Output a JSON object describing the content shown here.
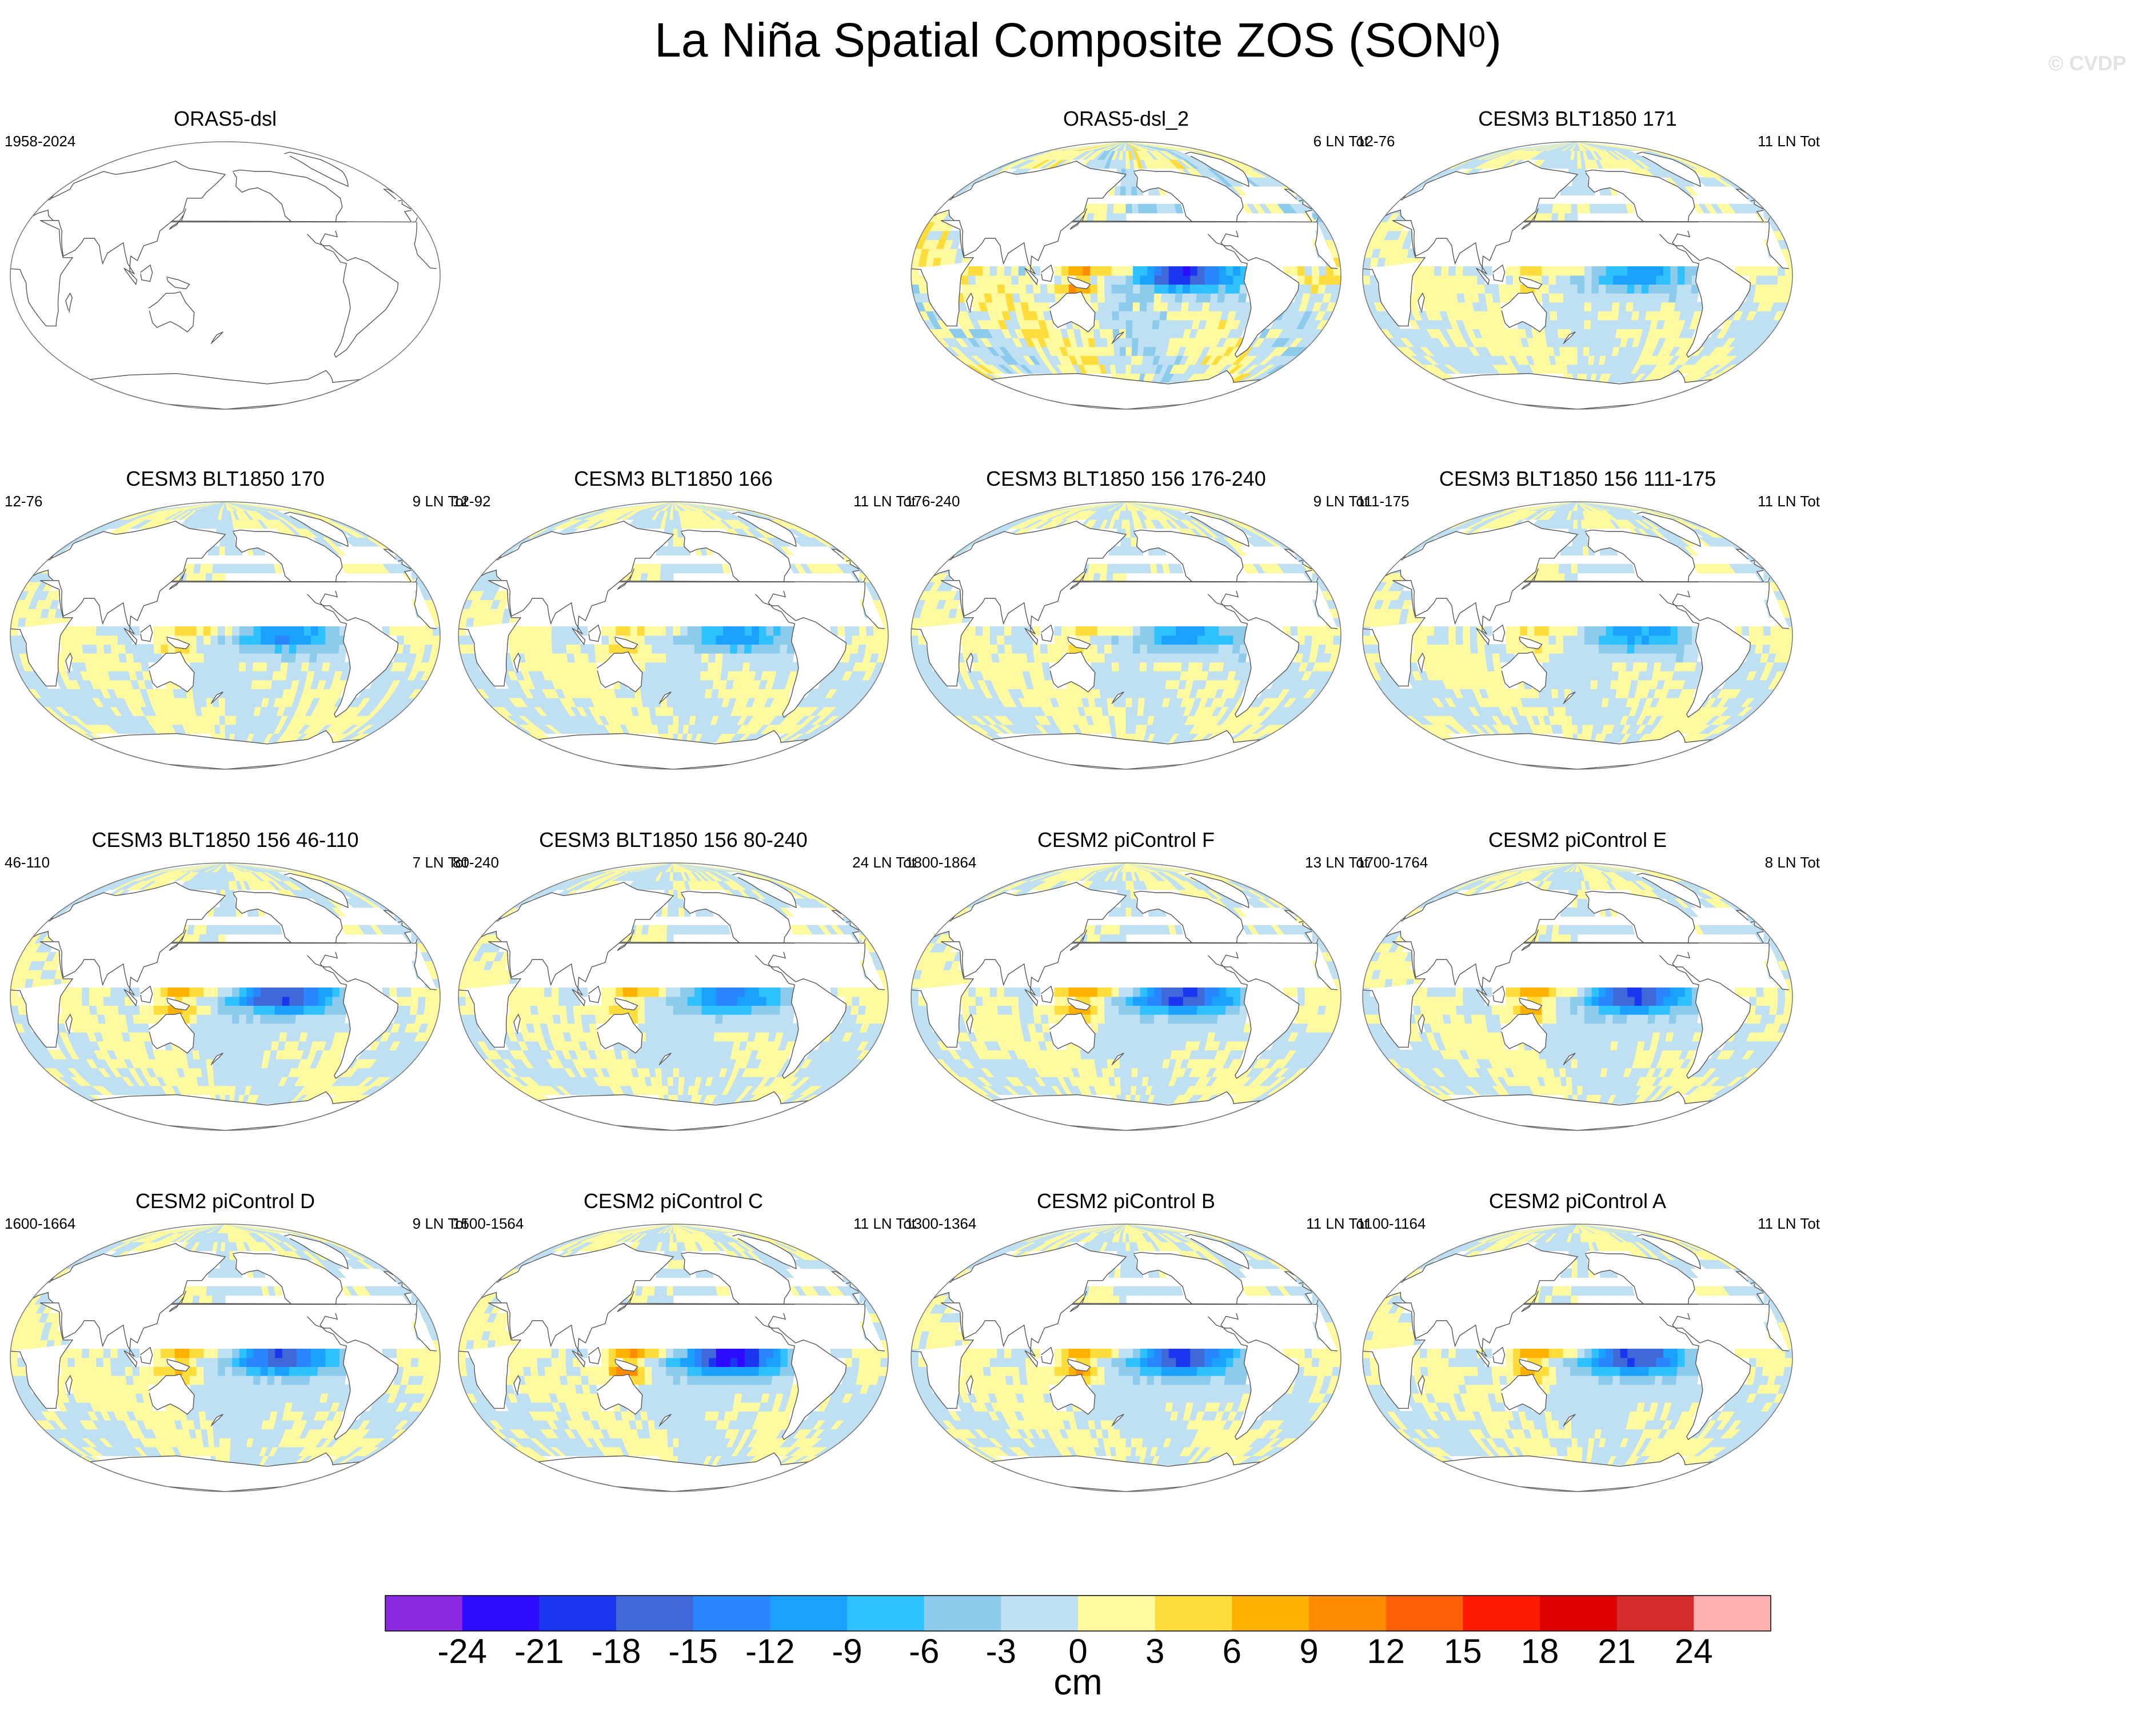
{
  "title_main": "La Niña Spatial Composite ZOS (SON",
  "title_sup": "0",
  "title_close": ")",
  "watermark": "© CVDP",
  "panels": [
    {
      "title": "ORAS5-dsl",
      "left": "1958-2024",
      "right": "",
      "empty": true,
      "amp": 0,
      "row": 0,
      "col": 0
    },
    {
      "title": "ORAS5-dsl_2",
      "left": "",
      "right": "6 LN Tot",
      "amp": 1.05,
      "noise": 0.9,
      "row": 0,
      "col": 2
    },
    {
      "title": "CESM3 BLT1850 171",
      "left": "12-76",
      "right": "11 LN Tot",
      "amp": 0.55,
      "noise": 0.5,
      "row": 0,
      "col": 3
    },
    {
      "title": "CESM3 BLT1850 170",
      "left": "12-76",
      "right": "9 LN Tot",
      "amp": 0.6,
      "noise": 0.5,
      "row": 1,
      "col": 0
    },
    {
      "title": "CESM3 BLT1850 166",
      "left": "12-92",
      "right": "11 LN Tot",
      "amp": 0.55,
      "noise": 0.5,
      "row": 1,
      "col": 1
    },
    {
      "title": "CESM3 BLT1850 156 176-240",
      "left": "176-240",
      "right": "9 LN Tot",
      "amp": 0.55,
      "noise": 0.5,
      "row": 1,
      "col": 2
    },
    {
      "title": "CESM3 BLT1850 156 111-175",
      "left": "111-175",
      "right": "11 LN Tot",
      "amp": 0.55,
      "noise": 0.5,
      "row": 1,
      "col": 3
    },
    {
      "title": "CESM3 BLT1850 156 46-110",
      "left": "46-110",
      "right": "7 LN Tot",
      "amp": 0.95,
      "noise": 0.45,
      "row": 2,
      "col": 0
    },
    {
      "title": "CESM3 BLT1850 156 80-240",
      "left": "80-240",
      "right": "24 LN Tot",
      "amp": 0.7,
      "noise": 0.35,
      "row": 2,
      "col": 1
    },
    {
      "title": "CESM2 piControl F",
      "left": "1800-1864",
      "right": "13 LN Tot",
      "amp": 0.95,
      "noise": 0.35,
      "row": 2,
      "col": 2
    },
    {
      "title": "CESM2 piControl E",
      "left": "1700-1764",
      "right": "8 LN Tot",
      "amp": 0.95,
      "noise": 0.35,
      "row": 2,
      "col": 3
    },
    {
      "title": "CESM2 piControl D",
      "left": "1600-1664",
      "right": "9 LN Tot",
      "amp": 0.9,
      "noise": 0.35,
      "row": 3,
      "col": 0
    },
    {
      "title": "CESM2 piControl C",
      "left": "1500-1564",
      "right": "11 LN Tot",
      "amp": 1.15,
      "noise": 0.4,
      "row": 3,
      "col": 1
    },
    {
      "title": "CESM2 piControl B",
      "left": "1300-1364",
      "right": "11 LN Tot",
      "amp": 1.0,
      "noise": 0.35,
      "row": 3,
      "col": 2
    },
    {
      "title": "CESM2 piControl A",
      "left": "1100-1164",
      "right": "11 LN Tot",
      "amp": 0.95,
      "noise": 0.35,
      "row": 3,
      "col": 3
    }
  ],
  "colorbar": {
    "colors": [
      "#8a2be2",
      "#2d0bff",
      "#1a37ef",
      "#3f69d9",
      "#2a86ff",
      "#1aa0ff",
      "#2ec0ff",
      "#8ccbec",
      "#bfe0f2",
      "#fffaa0",
      "#fddc3c",
      "#ffb100",
      "#ff8c00",
      "#ff5f06",
      "#ff1a00",
      "#dd0000",
      "#d42b2b",
      "#ffb0b0"
    ],
    "labels": [
      "-24",
      "-21",
      "-18",
      "-15",
      "-12",
      "-9",
      "-6",
      "-3",
      "0",
      "3",
      "6",
      "9",
      "12",
      "15",
      "18",
      "21",
      "24"
    ],
    "unit": "cm"
  },
  "chart_data": {
    "type": "heatmap",
    "title": "La Niña Spatial Composite ZOS (SON0)",
    "variable": "ZOS",
    "unit": "cm",
    "levels": [
      -24,
      -21,
      -18,
      -15,
      -12,
      -9,
      -6,
      -3,
      0,
      3,
      6,
      9,
      12,
      15,
      18,
      21,
      24
    ],
    "panels": [
      {
        "name": "ORAS5-dsl",
        "years": "1958-2024",
        "events": null,
        "data_shown": false
      },
      {
        "name": "ORAS5-dsl_2",
        "years": null,
        "events": "6 LN Tot"
      },
      {
        "name": "CESM3 BLT1850 171",
        "years": "12-76",
        "events": "11 LN Tot"
      },
      {
        "name": "CESM3 BLT1850 170",
        "years": "12-76",
        "events": "9 LN Tot"
      },
      {
        "name": "CESM3 BLT1850 166",
        "years": "12-92",
        "events": "11 LN Tot"
      },
      {
        "name": "CESM3 BLT1850 156 176-240",
        "years": "176-240",
        "events": "9 LN Tot"
      },
      {
        "name": "CESM3 BLT1850 156 111-175",
        "years": "111-175",
        "events": "11 LN Tot"
      },
      {
        "name": "CESM3 BLT1850 156 46-110",
        "years": "46-110",
        "events": "7 LN Tot"
      },
      {
        "name": "CESM3 BLT1850 156 80-240",
        "years": "80-240",
        "events": "24 LN Tot"
      },
      {
        "name": "CESM2 piControl F",
        "years": "1800-1864",
        "events": "13 LN Tot"
      },
      {
        "name": "CESM2 piControl E",
        "years": "1700-1764",
        "events": "8 LN Tot"
      },
      {
        "name": "CESM2 piControl D",
        "years": "1600-1664",
        "events": "9 LN Tot"
      },
      {
        "name": "CESM2 piControl C",
        "years": "1500-1564",
        "events": "11 LN Tot"
      },
      {
        "name": "CESM2 piControl B",
        "years": "1300-1364",
        "events": "11 LN Tot"
      },
      {
        "name": "CESM2 piControl A",
        "years": "1100-1164",
        "events": "11 LN Tot"
      }
    ]
  }
}
